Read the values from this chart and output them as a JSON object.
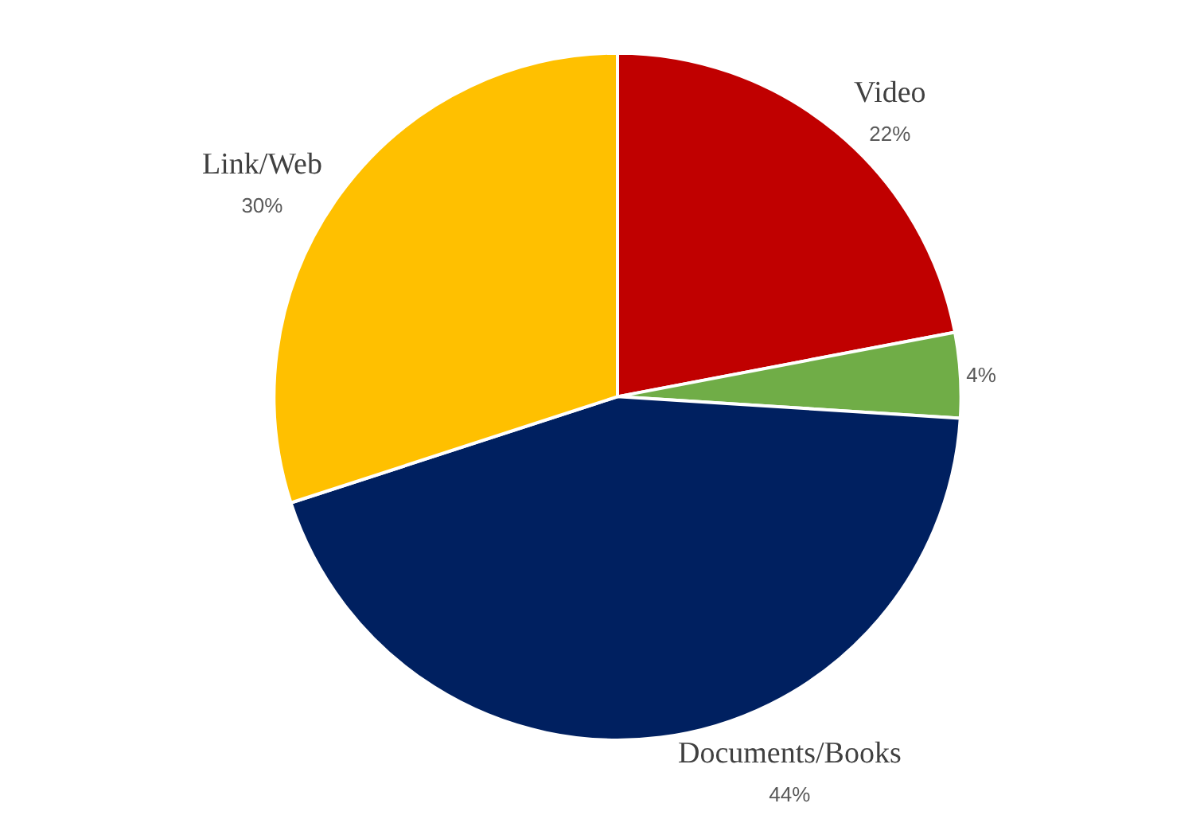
{
  "chart_data": {
    "type": "pie",
    "categories": [
      "Video",
      null,
      "Documents/Books",
      "Link/Web"
    ],
    "values": [
      22,
      4,
      44,
      30
    ],
    "colors": [
      "#c00000",
      "#70ad47",
      "#002060",
      "#ffc000"
    ],
    "value_labels": [
      "22%",
      "4%",
      "44%",
      "30%"
    ]
  }
}
